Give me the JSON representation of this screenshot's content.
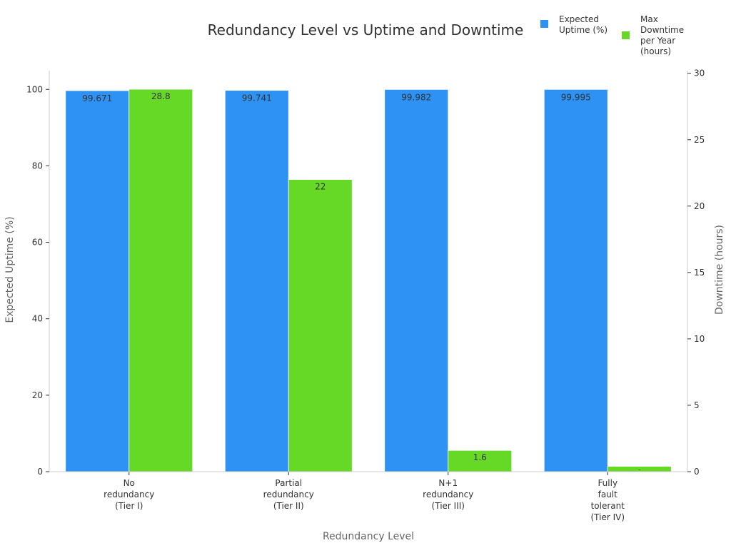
{
  "chart_data": {
    "type": "bar",
    "title": "Redundancy Level vs Uptime and Downtime",
    "xlabel": "Redundancy Level",
    "ylabel_left": "Expected Uptime (%)",
    "ylabel_right": "Downtime (hours)",
    "categories": [
      [
        "No",
        "redundancy",
        "(Tier I)"
      ],
      [
        "Partial",
        "redundancy",
        "(Tier II)"
      ],
      [
        "N+1",
        "redundancy",
        "(Tier III)"
      ],
      [
        "Fully",
        "fault",
        "tolerant",
        "(Tier IV)"
      ]
    ],
    "series": [
      {
        "name": "Expected Uptime (%)",
        "legend_lines": [
          "Expected",
          "Uptime (%)"
        ],
        "axis": "left",
        "color": "#2e92f5",
        "values": [
          99.671,
          99.741,
          99.982,
          99.995
        ],
        "labels": [
          "99.671",
          "99.741",
          "99.982",
          "99.995"
        ]
      },
      {
        "name": "Max Downtime per Year (hours)",
        "legend_lines": [
          "Max",
          "Downtime",
          "per Year",
          "(hours)"
        ],
        "axis": "right",
        "color": "#66d926",
        "values": [
          28.8,
          22,
          1.6,
          0.4
        ],
        "labels": [
          "28.8",
          "22",
          "1.6",
          "–"
        ]
      }
    ],
    "ylim_left": [
      0,
      104.9
    ],
    "yticks_left": [
      0,
      20,
      40,
      60,
      80,
      100
    ],
    "ylim_right": [
      0,
      30.2
    ],
    "yticks_right": [
      0,
      5,
      10,
      15,
      20,
      25,
      30
    ],
    "grid": false,
    "legend_position": "top-right"
  }
}
